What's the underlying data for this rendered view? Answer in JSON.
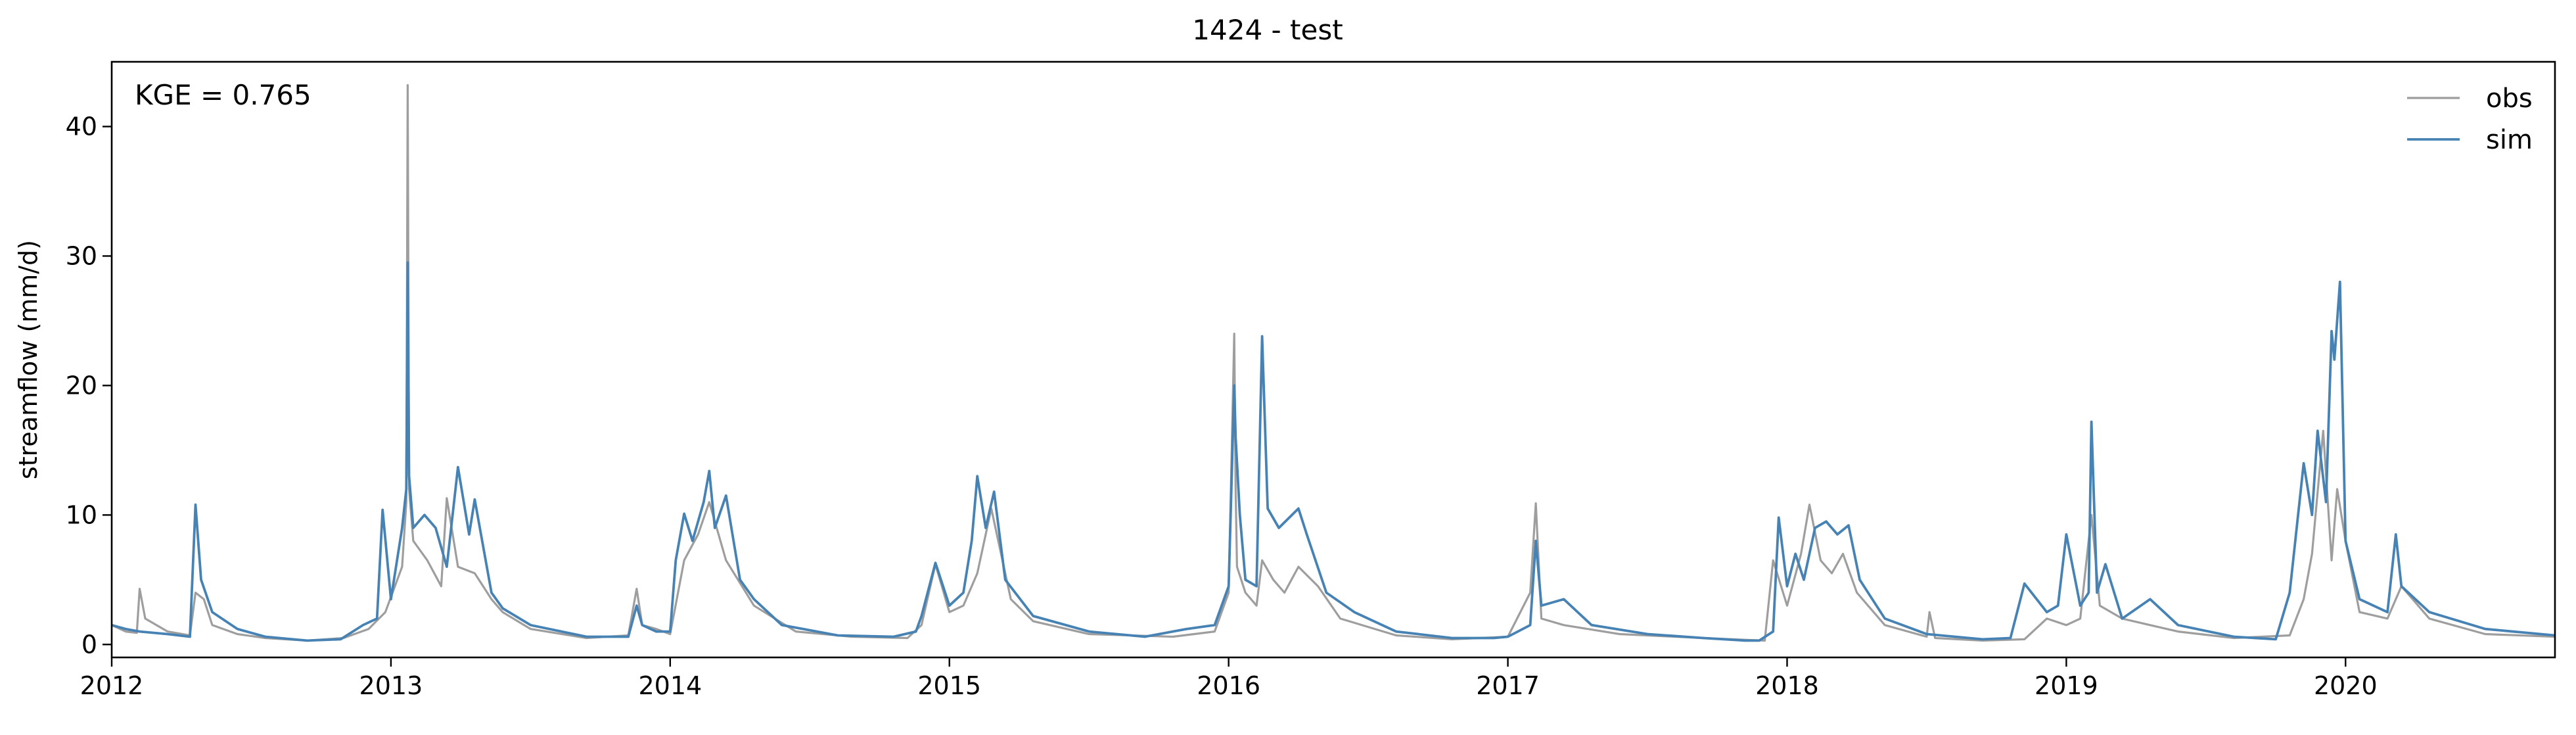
{
  "chart_data": {
    "type": "line",
    "title": "1424 - test",
    "xlabel": "",
    "ylabel": "streamflow (mm/d)",
    "annotation": "KGE = 0.765",
    "x_ticks": [
      "2012",
      "2013",
      "2014",
      "2015",
      "2016",
      "2017",
      "2018",
      "2019",
      "2020"
    ],
    "y_ticks": [
      0,
      10,
      20,
      30,
      40
    ],
    "xlim": [
      2012.0,
      2020.75
    ],
    "ylim": [
      -1.0,
      45.0
    ],
    "grid": false,
    "legend_position": "top-right",
    "series": [
      {
        "name": "obs",
        "color": "#9e9e9e",
        "x": [
          2012.0,
          2012.05,
          2012.09,
          2012.1,
          2012.12,
          2012.2,
          2012.28,
          2012.3,
          2012.33,
          2012.36,
          2012.45,
          2012.55,
          2012.7,
          2012.83,
          2012.92,
          2012.98,
          2013.04,
          2013.055,
          2013.06,
          2013.065,
          2013.08,
          2013.13,
          2013.18,
          2013.2,
          2013.24,
          2013.3,
          2013.36,
          2013.4,
          2013.5,
          2013.7,
          2013.85,
          2013.88,
          2013.9,
          2013.95,
          2014.0,
          2014.05,
          2014.1,
          2014.14,
          2014.2,
          2014.3,
          2014.45,
          2014.65,
          2014.85,
          2014.9,
          2014.95,
          2015.0,
          2015.05,
          2015.1,
          2015.15,
          2015.22,
          2015.3,
          2015.5,
          2015.8,
          2015.95,
          2016.0,
          2016.02,
          2016.025,
          2016.03,
          2016.06,
          2016.1,
          2016.12,
          2016.16,
          2016.2,
          2016.25,
          2016.32,
          2016.4,
          2016.6,
          2016.8,
          2017.0,
          2017.08,
          2017.1,
          2017.12,
          2017.2,
          2017.4,
          2017.7,
          2017.92,
          2017.95,
          2018.0,
          2018.05,
          2018.08,
          2018.12,
          2018.16,
          2018.2,
          2018.25,
          2018.35,
          2018.5,
          2018.51,
          2018.53,
          2018.7,
          2018.85,
          2018.93,
          2019.0,
          2019.05,
          2019.09,
          2019.12,
          2019.2,
          2019.3,
          2019.4,
          2019.6,
          2019.8,
          2019.85,
          2019.88,
          2019.92,
          2019.95,
          2019.97,
          2020.0,
          2020.05,
          2020.15,
          2020.2,
          2020.3,
          2020.5,
          2020.75
        ],
        "y": [
          1.5,
          1.0,
          0.9,
          4.3,
          2.0,
          1.0,
          0.7,
          4.0,
          3.5,
          1.5,
          0.8,
          0.5,
          0.3,
          0.5,
          1.2,
          2.5,
          6.0,
          11.0,
          43.2,
          12.0,
          8.0,
          6.5,
          4.5,
          11.3,
          6.0,
          5.5,
          3.5,
          2.5,
          1.2,
          0.5,
          0.7,
          4.3,
          1.5,
          1.2,
          0.8,
          6.5,
          8.5,
          11.0,
          6.5,
          3.0,
          1.0,
          0.6,
          0.5,
          1.5,
          6.2,
          2.5,
          3.0,
          5.5,
          10.5,
          3.5,
          1.8,
          0.8,
          0.6,
          1.0,
          4.0,
          24.0,
          12.0,
          6.0,
          4.0,
          3.0,
          6.5,
          5.0,
          4.0,
          6.0,
          4.5,
          2.0,
          0.7,
          0.4,
          0.6,
          4.0,
          10.9,
          2.0,
          1.5,
          0.8,
          0.5,
          0.3,
          6.5,
          3.0,
          7.0,
          10.8,
          6.5,
          5.5,
          7.0,
          4.0,
          1.5,
          0.6,
          2.5,
          0.5,
          0.3,
          0.4,
          2.0,
          1.5,
          2.0,
          10.0,
          3.0,
          2.0,
          1.5,
          1.0,
          0.5,
          0.7,
          3.5,
          7.0,
          16.5,
          6.5,
          12.0,
          8.0,
          2.5,
          2.0,
          4.5,
          2.0,
          0.8,
          0.6
        ]
      },
      {
        "name": "sim",
        "color": "#4682b4",
        "x": [
          2012.0,
          2012.05,
          2012.1,
          2012.2,
          2012.28,
          2012.3,
          2012.32,
          2012.36,
          2012.45,
          2012.55,
          2012.7,
          2012.82,
          2012.9,
          2012.95,
          2012.97,
          2013.0,
          2013.04,
          2013.055,
          2013.06,
          2013.065,
          2013.08,
          2013.12,
          2013.16,
          2013.2,
          2013.24,
          2013.28,
          2013.3,
          2013.36,
          2013.4,
          2013.5,
          2013.7,
          2013.85,
          2013.88,
          2013.9,
          2013.95,
          2014.0,
          2014.02,
          2014.05,
          2014.08,
          2014.12,
          2014.14,
          2014.16,
          2014.2,
          2014.25,
          2014.3,
          2014.4,
          2014.6,
          2014.8,
          2014.88,
          2014.9,
          2014.95,
          2015.0,
          2015.05,
          2015.08,
          2015.1,
          2015.13,
          2015.16,
          2015.2,
          2015.3,
          2015.5,
          2015.7,
          2015.85,
          2015.95,
          2016.0,
          2016.02,
          2016.025,
          2016.04,
          2016.06,
          2016.1,
          2016.12,
          2016.14,
          2016.18,
          2016.25,
          2016.28,
          2016.35,
          2016.45,
          2016.6,
          2016.8,
          2016.95,
          2017.0,
          2017.08,
          2017.1,
          2017.12,
          2017.2,
          2017.3,
          2017.5,
          2017.7,
          2017.85,
          2017.9,
          2017.95,
          2017.97,
          2018.0,
          2018.03,
          2018.06,
          2018.1,
          2018.14,
          2018.18,
          2018.22,
          2018.26,
          2018.35,
          2018.5,
          2018.7,
          2018.8,
          2018.85,
          2018.93,
          2018.97,
          2019.0,
          2019.05,
          2019.08,
          2019.09,
          2019.11,
          2019.14,
          2019.2,
          2019.3,
          2019.4,
          2019.6,
          2019.75,
          2019.8,
          2019.85,
          2019.88,
          2019.9,
          2019.93,
          2019.95,
          2019.96,
          2019.98,
          2020.0,
          2020.05,
          2020.15,
          2020.18,
          2020.2,
          2020.3,
          2020.5,
          2020.75
        ],
        "y": [
          1.5,
          1.2,
          1.0,
          0.8,
          0.6,
          10.8,
          5.0,
          2.5,
          1.2,
          0.6,
          0.3,
          0.4,
          1.5,
          2.0,
          10.4,
          3.5,
          9.0,
          12.0,
          29.5,
          13.0,
          9.0,
          10.0,
          9.0,
          6.0,
          13.7,
          8.5,
          11.2,
          4.0,
          2.8,
          1.5,
          0.6,
          0.6,
          3.0,
          1.5,
          1.0,
          1.0,
          6.5,
          10.1,
          8.0,
          11.0,
          13.4,
          9.0,
          11.5,
          5.0,
          3.5,
          1.5,
          0.7,
          0.6,
          1.0,
          2.2,
          6.3,
          3.0,
          4.0,
          8.0,
          13.0,
          9.0,
          11.8,
          5.0,
          2.2,
          1.0,
          0.6,
          1.2,
          1.5,
          4.5,
          20.0,
          16.0,
          10.0,
          5.0,
          4.5,
          23.8,
          10.5,
          9.0,
          10.5,
          8.5,
          4.0,
          2.5,
          1.0,
          0.5,
          0.5,
          0.6,
          1.5,
          8.0,
          3.0,
          3.5,
          1.5,
          0.8,
          0.5,
          0.3,
          0.3,
          1.0,
          9.8,
          4.5,
          7.0,
          5.0,
          9.0,
          9.5,
          8.5,
          9.2,
          5.0,
          2.0,
          0.8,
          0.4,
          0.5,
          4.7,
          2.5,
          3.0,
          8.5,
          3.0,
          4.0,
          17.2,
          4.0,
          6.2,
          2.0,
          3.5,
          1.5,
          0.6,
          0.4,
          4.0,
          14.0,
          10.0,
          16.5,
          11.0,
          24.2,
          22.0,
          28.0,
          8.0,
          3.5,
          2.5,
          8.5,
          4.5,
          2.5,
          1.2,
          0.7
        ]
      }
    ]
  }
}
